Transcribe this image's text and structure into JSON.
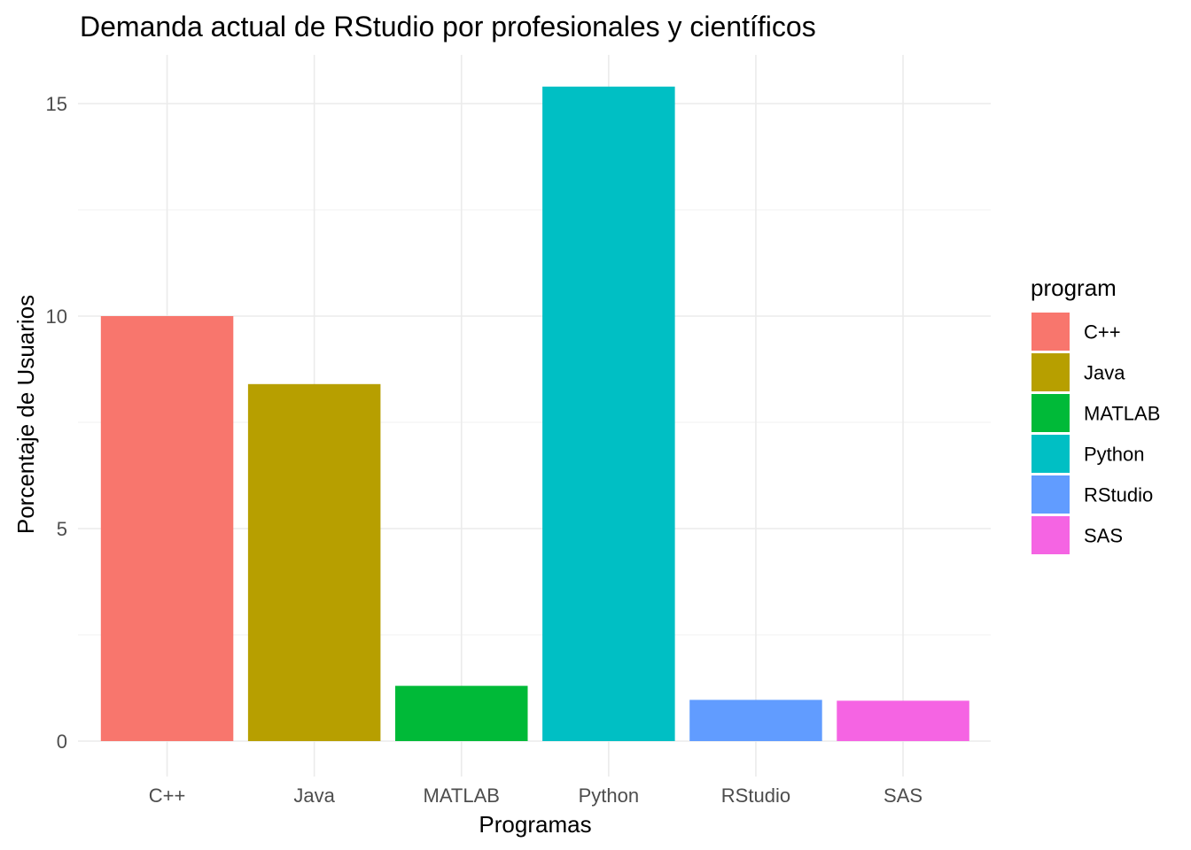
{
  "chart_data": {
    "type": "bar",
    "title": "Demanda actual de RStudio por profesionales y científicos",
    "xlabel": "Programas",
    "ylabel": "Porcentaje de Usuarios",
    "categories": [
      "C++",
      "Java",
      "MATLAB",
      "Python",
      "RStudio",
      "SAS"
    ],
    "values": [
      10.0,
      8.4,
      1.3,
      15.4,
      0.97,
      0.95
    ],
    "colors": [
      "#F8766D",
      "#B79F00",
      "#00BA38",
      "#00BFC4",
      "#619CFF",
      "#F564E3"
    ],
    "ylim": [
      0,
      16
    ],
    "y_ticks": [
      0,
      5,
      10,
      15
    ],
    "y_tick_labels": [
      "0",
      "5",
      "10",
      "15"
    ],
    "grid": true,
    "legend": {
      "title": "program",
      "position": "right",
      "items": [
        "C++",
        "Java",
        "MATLAB",
        "Python",
        "RStudio",
        "SAS"
      ]
    }
  }
}
